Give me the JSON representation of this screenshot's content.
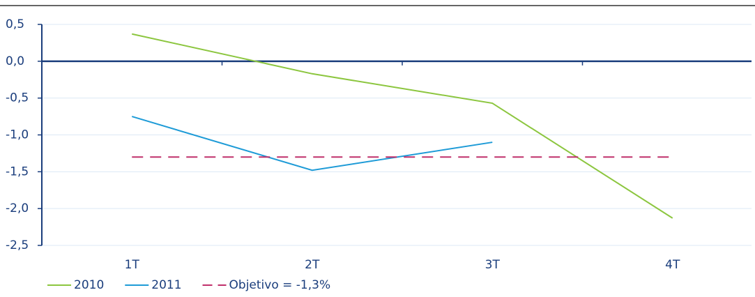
{
  "chart_data": {
    "type": "line",
    "categories": [
      "1T",
      "2T",
      "3T",
      "4T"
    ],
    "series": [
      {
        "name": "2010",
        "color": "#8cc63f",
        "values": [
          0.37,
          -0.17,
          -0.57,
          -2.13
        ]
      },
      {
        "name": "2011",
        "color": "#1e9bd7",
        "values": [
          -0.75,
          -1.48,
          -1.1,
          null
        ]
      },
      {
        "name": "Objetivo = -1,3%",
        "color": "#c0306b",
        "dashed": true,
        "values": [
          -1.3,
          -1.3,
          -1.3,
          -1.3
        ]
      }
    ],
    "ylim": [
      -2.5,
      0.5
    ],
    "yticks": [
      {
        "value": 0.5,
        "label": "0,5"
      },
      {
        "value": 0,
        "label": "0,0"
      },
      {
        "value": -0.5,
        "label": "-0,5"
      },
      {
        "value": -1,
        "label": "-1,0"
      },
      {
        "value": -1.5,
        "label": "-1,5"
      },
      {
        "value": -2,
        "label": "-2,0"
      },
      {
        "value": -2.5,
        "label": "-2,5"
      }
    ],
    "grid": true,
    "legend": "bottom-left"
  }
}
